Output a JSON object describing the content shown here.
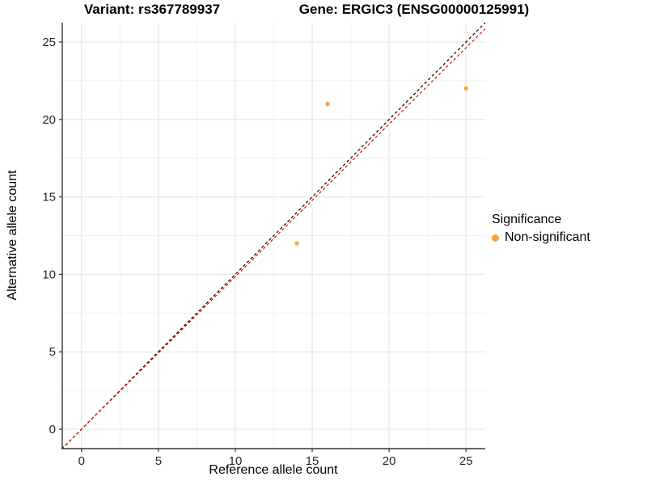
{
  "header": {
    "variant_title": "Variant: rs367789937",
    "gene_title": "Gene: ERGIC3 (ENSG00000125991)"
  },
  "legend": {
    "title": "Significance",
    "items": [
      {
        "label": "Non-significant",
        "color": "#FFA13B",
        "marker": "circle-icon"
      }
    ]
  },
  "chart_data": {
    "type": "scatter",
    "title": "Variant: rs367789937 — Gene: ERGIC3 (ENSG00000125991)",
    "xlabel": "Reference allele count",
    "ylabel": "Alternative allele count",
    "xlim": [
      -1.25,
      26.25
    ],
    "ylim": [
      -1.25,
      26.25
    ],
    "x_ticks": [
      0,
      5,
      10,
      15,
      20,
      25
    ],
    "y_ticks": [
      0,
      5,
      10,
      15,
      20,
      25
    ],
    "x_minor_ticks": [
      2.5,
      7.5,
      12.5,
      17.5,
      22.5
    ],
    "y_minor_ticks": [
      2.5,
      7.5,
      12.5,
      17.5,
      22.5
    ],
    "grid": {
      "on": true,
      "major_color": "#E4E4E4",
      "minor_color": "#F1F1F1"
    },
    "axis_line_color": "#333333",
    "tick_label_color": "#262626",
    "legend_position": "right",
    "series": [
      {
        "name": "Non-significant",
        "color": "#FFA13B",
        "marker": "circle",
        "point_radius": 2.7,
        "points": [
          {
            "x": 14,
            "y": 12
          },
          {
            "x": 16,
            "y": 21
          },
          {
            "x": 25,
            "y": 22
          }
        ]
      }
    ],
    "reference_lines": [
      {
        "name": "identity-line",
        "color": "#000000",
        "dash": "3.5 3",
        "slope": 1,
        "intercept": 0
      },
      {
        "name": "fitted-line",
        "color": "#FF0000",
        "dash": "3.5 3",
        "slope": 0.985,
        "intercept": 0
      }
    ]
  }
}
